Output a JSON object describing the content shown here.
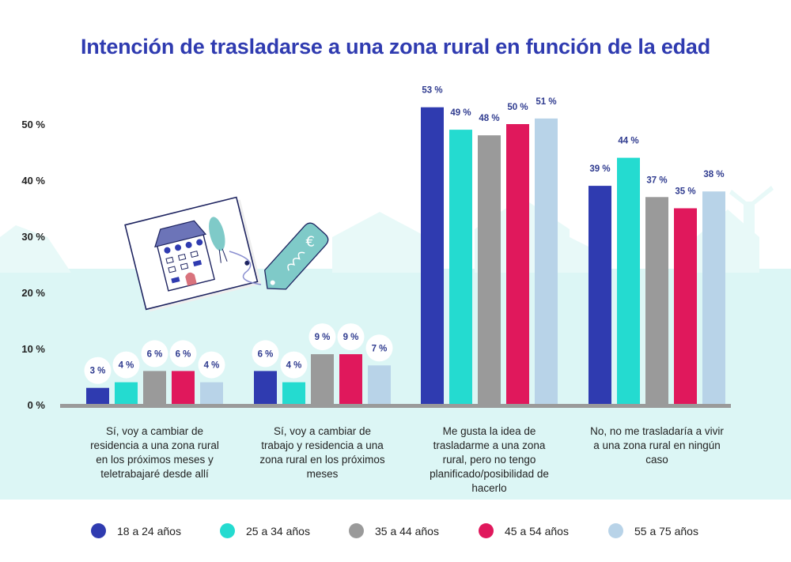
{
  "chart_data": {
    "type": "bar",
    "title": "Intención de trasladarse a una zona rural en función de la edad",
    "categories": [
      "Sí, voy a cambiar de residencia a una zona rural en los próximos meses y teletrabajaré desde allí",
      "Sí, voy a cambiar de trabajo y residencia a una zona rural en los próximos meses",
      "Me gusta la idea de trasladarme a una zona rural, pero no tengo planificado/posibilidad de hacerlo",
      "No, no me trasladaría a vivir a una zona rural en ningún caso"
    ],
    "category_lines": [
      [
        "Sí, voy a cambiar de",
        "residencia a una zona rural",
        "en los próximos meses y",
        "teletrabajaré desde allí"
      ],
      [
        "Sí, voy a cambiar de",
        "trabajo y residencia a una",
        "zona rural en los próximos",
        "meses"
      ],
      [
        "Me gusta la idea de",
        "trasladarme a una zona",
        "rural, pero no tengo",
        "planificado/posibilidad de",
        "hacerlo"
      ],
      [
        "No, no me trasladaría a vivir",
        "a una zona rural en ningún",
        "caso"
      ]
    ],
    "series": [
      {
        "name": "18 a 24 años",
        "color": "#2f3bb0",
        "values": [
          3,
          6,
          53,
          39
        ]
      },
      {
        "name": "25 a 34 años",
        "color": "#24dbd0",
        "values": [
          4,
          4,
          49,
          44
        ]
      },
      {
        "name": "35 a 44 años",
        "color": "#9a9a9a",
        "values": [
          6,
          9,
          48,
          37
        ]
      },
      {
        "name": "45 a 54 años",
        "color": "#e0185c",
        "values": [
          6,
          9,
          50,
          35
        ]
      },
      {
        "name": "55 a 75 años",
        "color": "#b8d3e8",
        "values": [
          4,
          7,
          51,
          38
        ]
      }
    ],
    "value_suffix": " %",
    "yticks": [
      "0 %",
      "10 %",
      "20 %",
      "30 %",
      "40 %",
      "50 %"
    ],
    "ylim": [
      0,
      50
    ],
    "grid": false,
    "legend_position": "bottom"
  }
}
